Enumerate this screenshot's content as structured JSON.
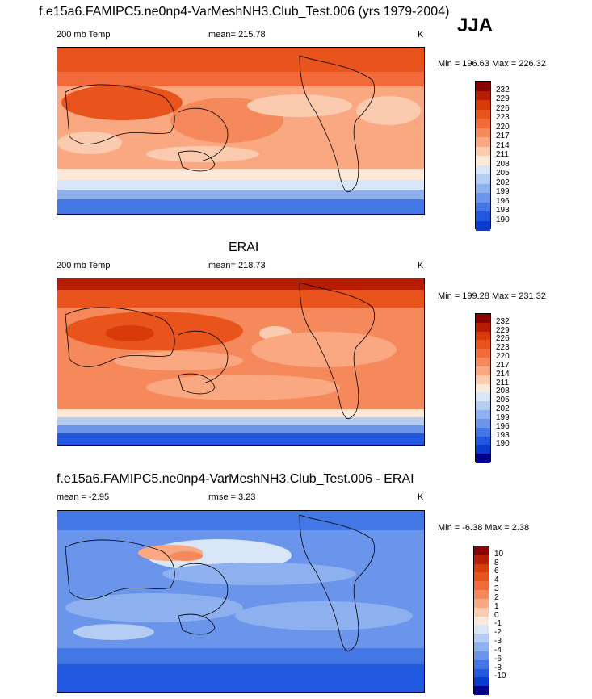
{
  "header": {
    "top_title": "f.e15a6.FAMIPC5.ne0np4-VarMeshNH3.Club_Test.006 (yrs 1979-2004)",
    "season": "JJA"
  },
  "chart_data": [
    {
      "type": "heatmap",
      "title": "",
      "left_label": "200 mb Temp",
      "center_label": "mean= 215.78",
      "right_label": "K",
      "minmax": "Min = 196.63 Max = 226.32",
      "colorbar_ticks": [
        "232",
        "229",
        "226",
        "223",
        "220",
        "217",
        "214",
        "211",
        "208",
        "205",
        "202",
        "199",
        "196",
        "193",
        "190"
      ],
      "colorbar_colors": [
        "#8b0000",
        "#b81c00",
        "#d83a0a",
        "#e9531c",
        "#f26a3a",
        "#f6895b",
        "#f9a882",
        "#fbcbb0",
        "#fde9da",
        "#d9e6f7",
        "#b6cdf3",
        "#8eb0ef",
        "#6b94eb",
        "#4477e6",
        "#2158e0",
        "#0a3bd0"
      ]
    },
    {
      "type": "heatmap",
      "title": "ERAI",
      "left_label": "200 mb Temp",
      "center_label": "mean= 218.73",
      "right_label": "K",
      "minmax": "Min = 199.28 Max = 231.32",
      "colorbar_ticks": [
        "232",
        "229",
        "226",
        "223",
        "220",
        "217",
        "214",
        "211",
        "208",
        "205",
        "202",
        "199",
        "196",
        "193",
        "190"
      ],
      "colorbar_colors": [
        "#8b0000",
        "#b81c00",
        "#d83a0a",
        "#e9531c",
        "#f26a3a",
        "#f6895b",
        "#f9a882",
        "#fbcbb0",
        "#fde9da",
        "#d9e6f7",
        "#b6cdf3",
        "#8eb0ef",
        "#6b94eb",
        "#4477e6",
        "#2158e0",
        "#0a3bd0",
        "#00008b"
      ]
    },
    {
      "type": "heatmap",
      "title": "f.e15a6.FAMIPC5.ne0np4-VarMeshNH3.Club_Test.006 - ERAI",
      "left_label": "mean =  -2.95",
      "center_label": "rmse =   3.23",
      "right_label": "K",
      "minmax": "Min =  -6.38 Max =   2.38",
      "colorbar_ticks": [
        "10",
        "8",
        "6",
        "4",
        "3",
        "2",
        "1",
        "0",
        "-1",
        "-2",
        "-3",
        "-4",
        "-6",
        "-8",
        "-10"
      ],
      "colorbar_colors": [
        "#8b0000",
        "#b81c00",
        "#d83a0a",
        "#e9531c",
        "#f26a3a",
        "#f6895b",
        "#f9a882",
        "#fbcbb0",
        "#fde9da",
        "#d9e6f7",
        "#b6cdf3",
        "#8eb0ef",
        "#6b94eb",
        "#4477e6",
        "#2158e0",
        "#0a3bd0",
        "#00008b"
      ]
    }
  ]
}
